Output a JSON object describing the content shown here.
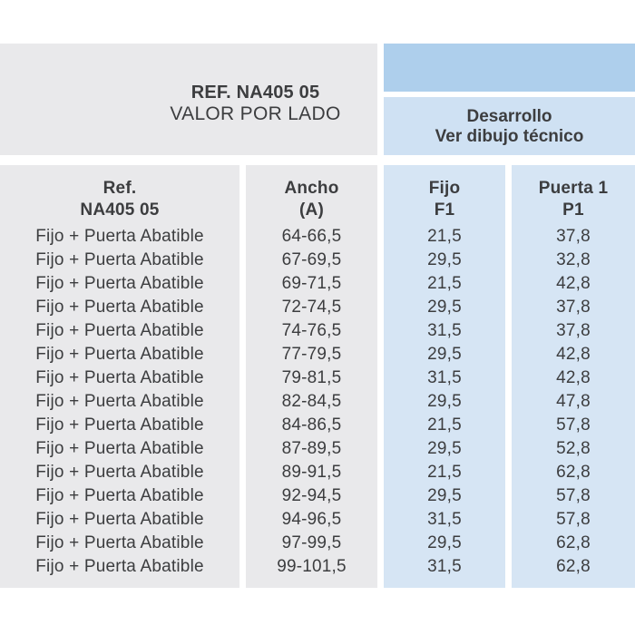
{
  "colors": {
    "block_gray": "#e9e9eb",
    "banner_blue_dark": "#aecfec",
    "banner_blue_light": "#cfe1f3",
    "column_blue": "#d6e5f4",
    "text": "#3c3d3f"
  },
  "header": {
    "ref_title": "REF. NA405 05",
    "ref_subtitle": "VALOR POR LADO",
    "right_line1": "Desarrollo",
    "right_line2": "Ver dibujo técnico"
  },
  "table": {
    "columns": [
      {
        "id": "ref",
        "header_line1": "Ref.",
        "header_line2": "NA405 05"
      },
      {
        "id": "ancho",
        "header_line1": "Ancho",
        "header_line2": "(A)"
      },
      {
        "id": "f1",
        "header_line1": "Fijo",
        "header_line2": "F1"
      },
      {
        "id": "p1",
        "header_line1": "Puerta 1",
        "header_line2": "P1"
      }
    ],
    "rows": [
      {
        "ref": "Fijo + Puerta Abatible",
        "ancho": "64-66,5",
        "f1": "21,5",
        "p1": "37,8"
      },
      {
        "ref": "Fijo + Puerta Abatible",
        "ancho": "67-69,5",
        "f1": "29,5",
        "p1": "32,8"
      },
      {
        "ref": "Fijo + Puerta Abatible",
        "ancho": "69-71,5",
        "f1": "21,5",
        "p1": "42,8"
      },
      {
        "ref": "Fijo + Puerta Abatible",
        "ancho": "72-74,5",
        "f1": "29,5",
        "p1": "37,8"
      },
      {
        "ref": "Fijo + Puerta Abatible",
        "ancho": "74-76,5",
        "f1": "31,5",
        "p1": "37,8"
      },
      {
        "ref": "Fijo + Puerta Abatible",
        "ancho": "77-79,5",
        "f1": "29,5",
        "p1": "42,8"
      },
      {
        "ref": "Fijo + Puerta Abatible",
        "ancho": "79-81,5",
        "f1": "31,5",
        "p1": "42,8"
      },
      {
        "ref": "Fijo + Puerta Abatible",
        "ancho": "82-84,5",
        "f1": "29,5",
        "p1": "47,8"
      },
      {
        "ref": "Fijo + Puerta Abatible",
        "ancho": "84-86,5",
        "f1": "21,5",
        "p1": "57,8"
      },
      {
        "ref": "Fijo + Puerta Abatible",
        "ancho": "87-89,5",
        "f1": "29,5",
        "p1": "52,8"
      },
      {
        "ref": "Fijo + Puerta Abatible",
        "ancho": "89-91,5",
        "f1": "21,5",
        "p1": "62,8"
      },
      {
        "ref": "Fijo + Puerta Abatible",
        "ancho": "92-94,5",
        "f1": "29,5",
        "p1": "57,8"
      },
      {
        "ref": "Fijo + Puerta Abatible",
        "ancho": "94-96,5",
        "f1": "31,5",
        "p1": "57,8"
      },
      {
        "ref": "Fijo + Puerta Abatible",
        "ancho": "97-99,5",
        "f1": "29,5",
        "p1": "62,8"
      },
      {
        "ref": "Fijo + Puerta Abatible",
        "ancho": "99-101,5",
        "f1": "31,5",
        "p1": "62,8"
      }
    ]
  }
}
